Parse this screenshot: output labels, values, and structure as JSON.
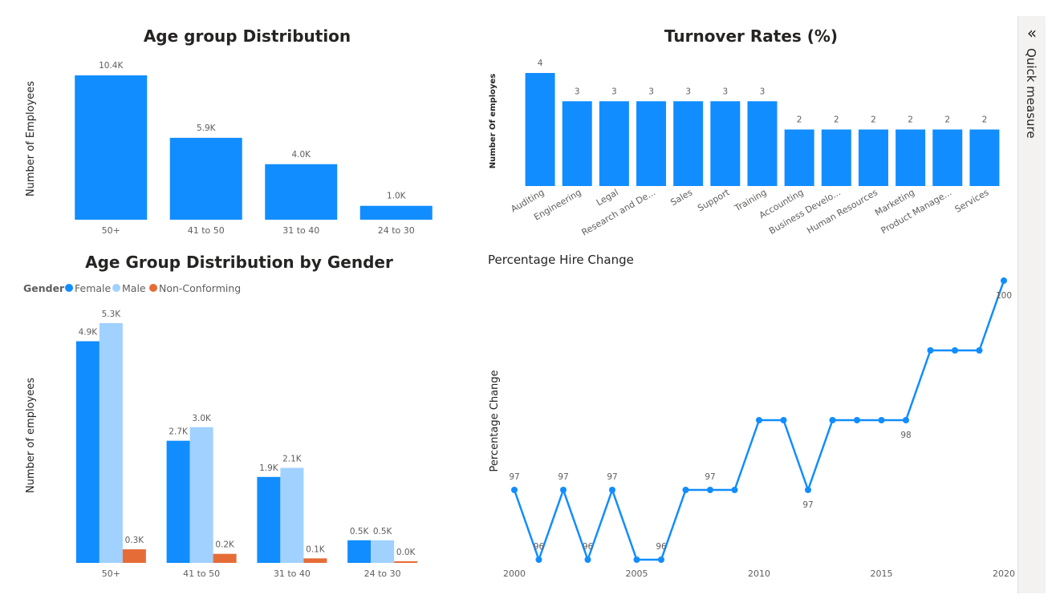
{
  "colors": {
    "primary": "#118DFF",
    "male": "#A0D1FF",
    "nonconforming": "#E66C37",
    "line": "#118DFF"
  },
  "side_pane": {
    "label": "Quick measure",
    "collapse_icon": "double-chevron-left-icon"
  },
  "chart_data": [
    {
      "id": "age",
      "type": "bar",
      "title": "Age group Distribution",
      "ylabel": "Number of Employees",
      "categories": [
        "50+",
        "41 to 50",
        "31 to 40",
        "24 to 30"
      ],
      "values": [
        10400,
        5900,
        4000,
        1000
      ],
      "labels": [
        "10.4K",
        "5.9K",
        "4.0K",
        "1.0K"
      ],
      "ylim": [
        0,
        10400
      ]
    },
    {
      "id": "turnover",
      "type": "bar",
      "title": "Turnover Rates (%)",
      "ylabel": "Number Of employes",
      "categories": [
        "Auditing",
        "Engineering",
        "Legal",
        "Research and De...",
        "Sales",
        "Support",
        "Training",
        "Accounting",
        "Business Develo...",
        "Human Resources",
        "Marketing",
        "Product Manage...",
        "Services"
      ],
      "values": [
        4,
        3,
        3,
        3,
        3,
        3,
        3,
        2,
        2,
        2,
        2,
        2,
        2
      ],
      "ylim": [
        0,
        4
      ]
    },
    {
      "id": "gender",
      "type": "bar",
      "title": "Age Group Distribution by Gender",
      "ylabel": "Number of employees",
      "legend_title": "Gender",
      "categories": [
        "50+",
        "41 to 50",
        "31 to 40",
        "24 to 30"
      ],
      "series": [
        {
          "name": "Female",
          "values": [
            4900,
            2700,
            1900,
            500
          ],
          "labels": [
            "4.9K",
            "2.7K",
            "1.9K",
            "0.5K"
          ]
        },
        {
          "name": "Male",
          "values": [
            5300,
            3000,
            2100,
            500
          ],
          "labels": [
            "5.3K",
            "3.0K",
            "2.1K",
            "0.5K"
          ]
        },
        {
          "name": "Non-Conforming",
          "values": [
            300,
            200,
            100,
            20
          ],
          "labels": [
            "0.3K",
            "0.2K",
            "0.1K",
            "0.0K"
          ]
        }
      ],
      "ylim": [
        0,
        5300
      ]
    },
    {
      "id": "hire",
      "type": "line",
      "title": "Percentage Hire Change",
      "ylabel": "Percentage Change",
      "x": [
        2000,
        2001,
        2002,
        2003,
        2004,
        2005,
        2006,
        2007,
        2008,
        2009,
        2010,
        2011,
        2012,
        2013,
        2014,
        2015,
        2016,
        2017,
        2018,
        2019,
        2020
      ],
      "y": [
        97,
        96,
        97,
        96,
        97,
        96,
        96,
        97,
        97,
        97,
        98,
        98,
        97,
        98,
        98,
        98,
        98,
        99,
        99,
        99,
        100
      ],
      "xticks": [
        "2000",
        "2005",
        "2010",
        "2015",
        "2020"
      ],
      "point_labels": [
        {
          "x": 2000,
          "text": "97"
        },
        {
          "x": 2001,
          "text": "96"
        },
        {
          "x": 2002,
          "text": "97"
        },
        {
          "x": 2003,
          "text": "96"
        },
        {
          "x": 2004,
          "text": "97"
        },
        {
          "x": 2006,
          "text": "96"
        },
        {
          "x": 2008,
          "text": "97"
        },
        {
          "x": 2012,
          "text": "97"
        },
        {
          "x": 2016,
          "text": "98"
        },
        {
          "x": 2020,
          "text": "100"
        }
      ],
      "xlim": [
        2000,
        2020
      ],
      "ylim": [
        96,
        100
      ]
    }
  ]
}
